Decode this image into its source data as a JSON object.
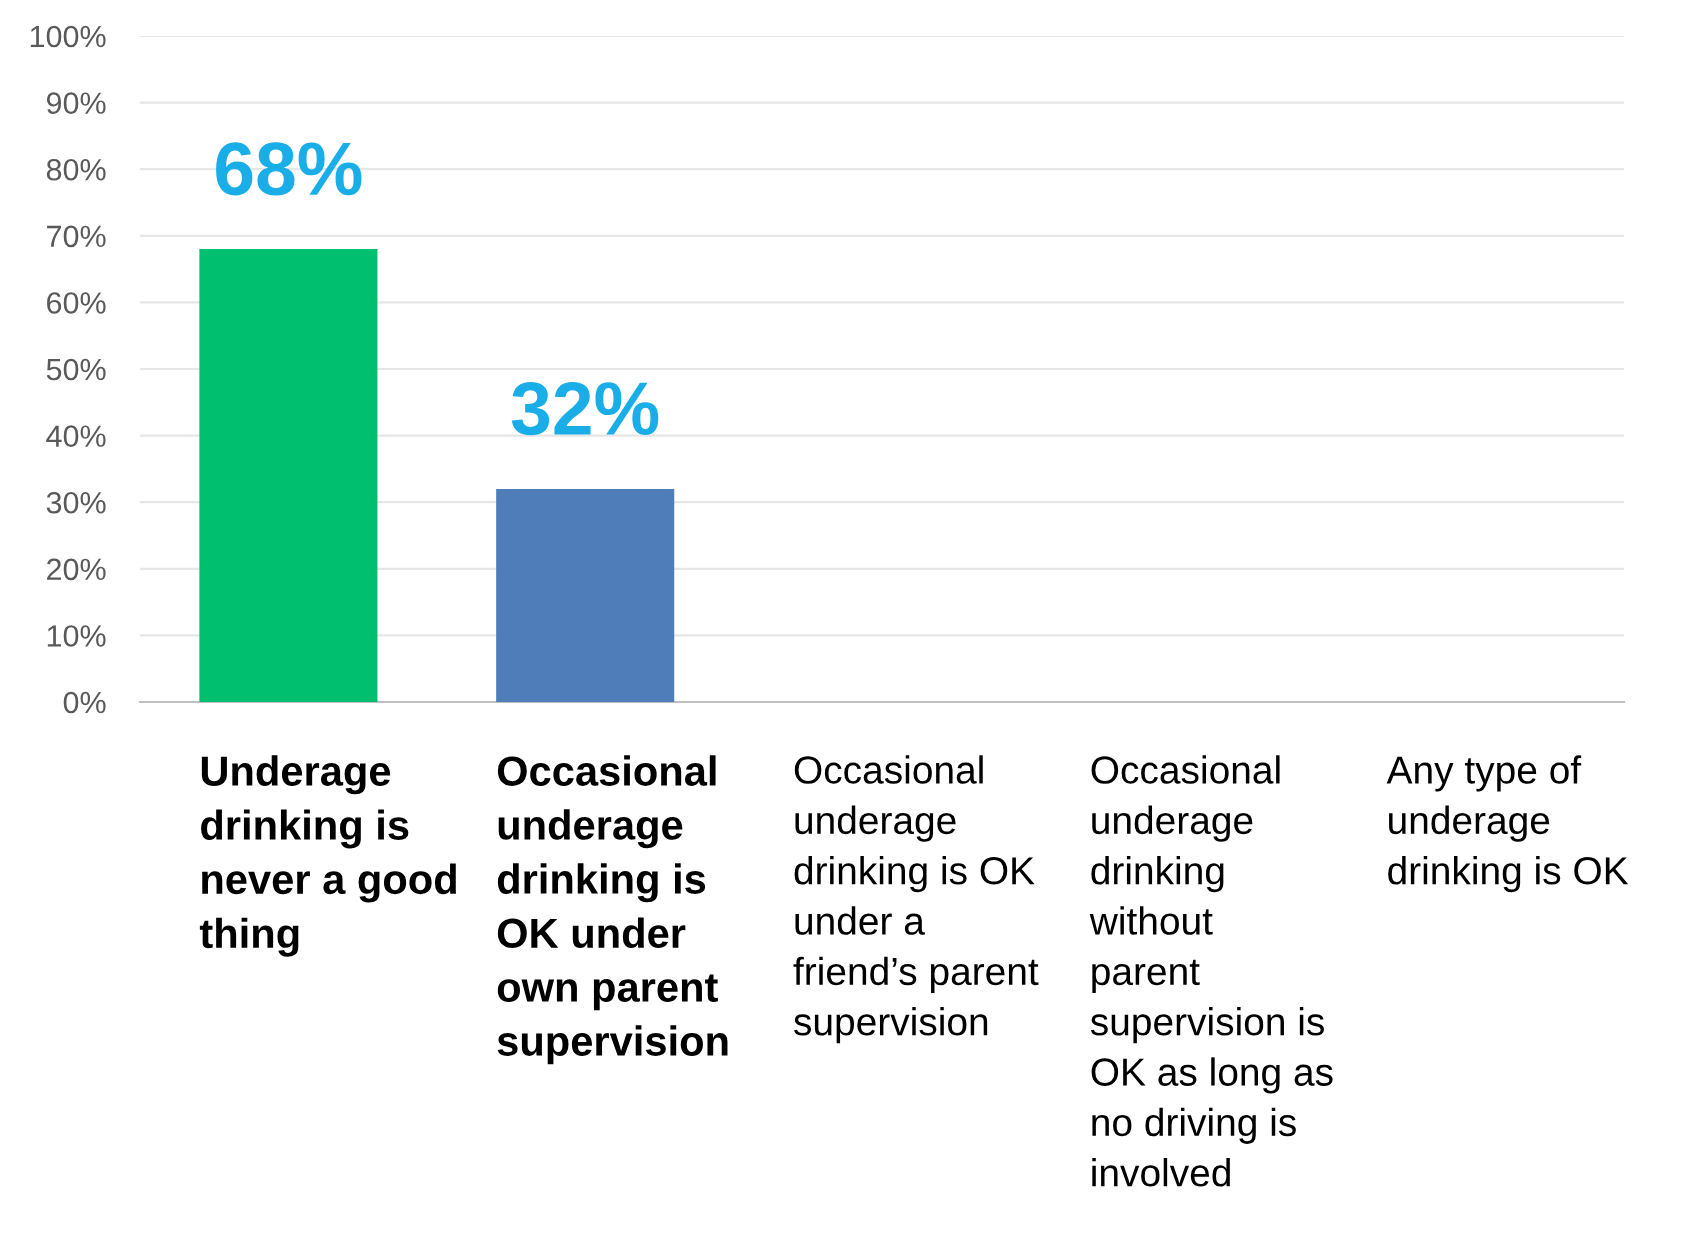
{
  "chart_data": {
    "type": "bar",
    "categories": [
      "Underage\ndrinking is\nnever a good\nthing",
      "Occasional\nunderage\ndrinking is\nOK under\nown parent\nsupervision",
      "Occasional\nunderage\ndrinking is OK\nunder a\nfriend’s parent\nsupervision",
      "Occasional\nunderage\ndrinking\nwithout\nparent\nsupervision is\nOK as long as\nno driving is\ninvolved",
      "Any type of\nunderage\ndrinking is OK"
    ],
    "values": [
      68,
      32,
      0,
      0,
      0
    ],
    "colors": [
      "#00bf6f",
      "#4f7dba",
      "#4f7dba",
      "#4f7dba",
      "#4f7dba"
    ],
    "value_labels": [
      "68%",
      "32%",
      null,
      null,
      null
    ],
    "ylim": [
      0,
      100
    ],
    "yticks": [
      {
        "value": 0,
        "label": "0%"
      },
      {
        "value": 10,
        "label": "10%"
      },
      {
        "value": 20,
        "label": "20%"
      },
      {
        "value": 30,
        "label": "30%"
      },
      {
        "value": 40,
        "label": "40%"
      },
      {
        "value": 50,
        "label": "50%"
      },
      {
        "value": 60,
        "label": "60%"
      },
      {
        "value": 70,
        "label": "70%"
      },
      {
        "value": 80,
        "label": "80%"
      },
      {
        "value": 90,
        "label": "90%"
      },
      {
        "value": 100,
        "label": "100%"
      }
    ],
    "grid": "y"
  }
}
